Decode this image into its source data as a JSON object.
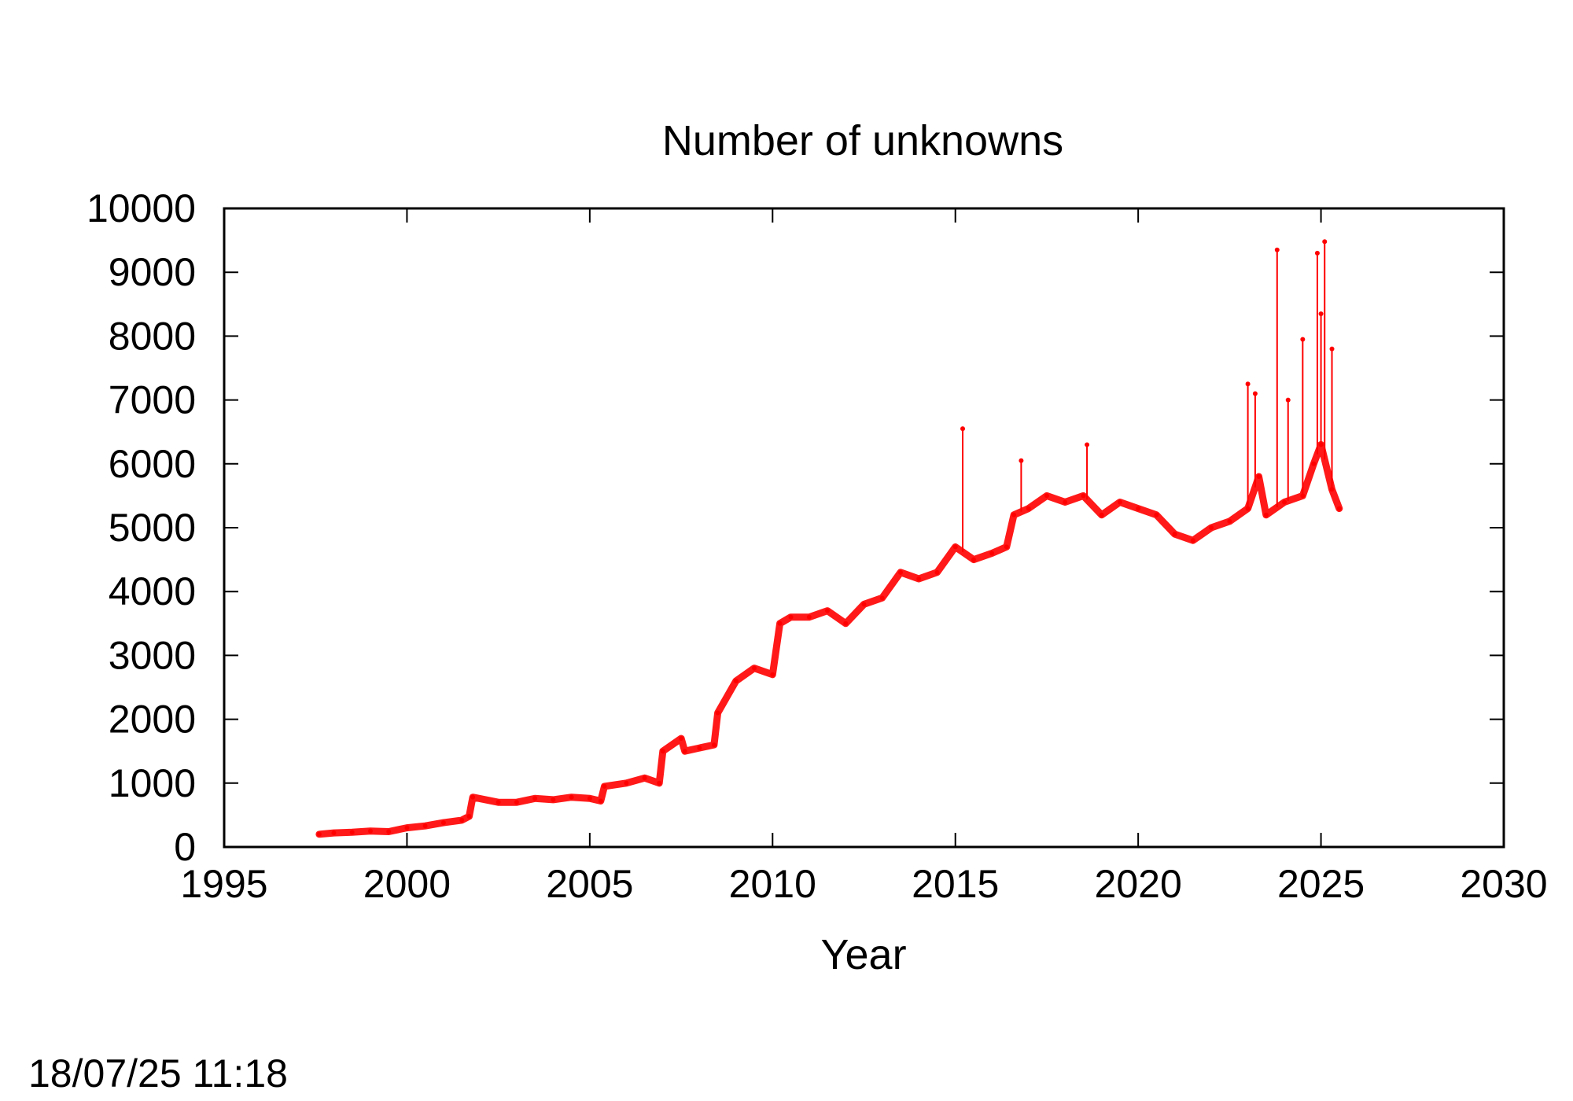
{
  "chart_data": {
    "type": "line",
    "title": "Number of unknowns",
    "xlabel": "Year",
    "ylabel": "",
    "xlim": [
      1995,
      2030
    ],
    "ylim": [
      0,
      10000
    ],
    "xticks": [
      1995,
      2000,
      2005,
      2010,
      2015,
      2020,
      2025,
      2030
    ],
    "yticks": [
      0,
      1000,
      2000,
      3000,
      4000,
      5000,
      6000,
      7000,
      8000,
      9000,
      10000
    ],
    "grid": false,
    "legend": "none",
    "series": [
      {
        "color": "#ff0000",
        "x": [
          1997.6,
          1998.0,
          1998.5,
          1999.0,
          1999.5,
          2000.0,
          2000.5,
          2001.0,
          2001.5,
          2001.7,
          2001.8,
          2002.5,
          2003.0,
          2003.5,
          2004.0,
          2004.5,
          2005.0,
          2005.3,
          2005.4,
          2006.0,
          2006.5,
          2006.9,
          2007.0,
          2007.5,
          2007.6,
          2008.0,
          2008.4,
          2008.5,
          2009.0,
          2009.5,
          2010.0,
          2010.2,
          2010.5,
          2011.0,
          2011.5,
          2012.0,
          2012.5,
          2013.0,
          2013.5,
          2014.0,
          2014.5,
          2015.0,
          2015.5,
          2016.0,
          2016.4,
          2016.6,
          2017.0,
          2017.5,
          2018.0,
          2018.5,
          2019.0,
          2019.5,
          2020.0,
          2020.5,
          2021.0,
          2021.5,
          2022.0,
          2022.5,
          2023.0,
          2023.3,
          2023.5,
          2024.0,
          2024.5,
          2024.8,
          2025.0,
          2025.3,
          2025.5
        ],
        "y": [
          200,
          220,
          230,
          250,
          240,
          300,
          330,
          380,
          420,
          480,
          780,
          700,
          700,
          760,
          740,
          780,
          760,
          720,
          950,
          1000,
          1080,
          1000,
          1500,
          1700,
          1500,
          1550,
          1600,
          2100,
          2600,
          2800,
          2700,
          3500,
          3600,
          3600,
          3700,
          3500,
          3800,
          3900,
          4300,
          4200,
          4300,
          4700,
          4500,
          4600,
          4700,
          5200,
          5300,
          5500,
          5400,
          5500,
          5200,
          5400,
          5300,
          5200,
          4900,
          4800,
          5000,
          5100,
          5300,
          5800,
          5200,
          5400,
          5500,
          6000,
          6300,
          5600,
          5300
        ]
      }
    ],
    "spikes": [
      {
        "x": 2015.2,
        "y": 6550
      },
      {
        "x": 2016.8,
        "y": 6050
      },
      {
        "x": 2018.6,
        "y": 6300
      },
      {
        "x": 2023.0,
        "y": 7250
      },
      {
        "x": 2023.2,
        "y": 7100
      },
      {
        "x": 2023.8,
        "y": 9350
      },
      {
        "x": 2024.1,
        "y": 7000
      },
      {
        "x": 2024.5,
        "y": 7950
      },
      {
        "x": 2024.9,
        "y": 9300
      },
      {
        "x": 2025.0,
        "y": 8350
      },
      {
        "x": 2025.1,
        "y": 9480
      },
      {
        "x": 2025.3,
        "y": 7800
      }
    ]
  },
  "timestamp": "18/07/25 11:18"
}
